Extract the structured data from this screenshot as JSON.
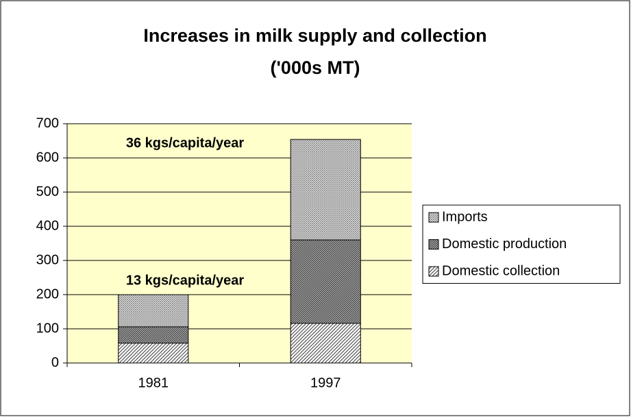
{
  "chart_data": {
    "type": "stacked_bar",
    "title": [
      "Increases in milk supply and collection",
      "('000s MT)"
    ],
    "categories": [
      "1981",
      "1997"
    ],
    "series": [
      {
        "name": "Domestic collection",
        "color": "#555555",
        "values": [
          58,
          116
        ]
      },
      {
        "name": "Domestic production",
        "color": "#333333",
        "values": [
          48,
          244
        ]
      },
      {
        "name": "Imports",
        "color": "#777777",
        "values": [
          94,
          294
        ]
      }
    ],
    "annotations": [
      "13 kgs/capita/year",
      "36 kgs/capita/year"
    ],
    "ylim": [
      0,
      700
    ],
    "yticks": [
      0,
      100,
      200,
      300,
      400,
      500,
      600,
      700
    ],
    "grid": true,
    "legend": "right",
    "plot_background": "#ffffcc"
  }
}
